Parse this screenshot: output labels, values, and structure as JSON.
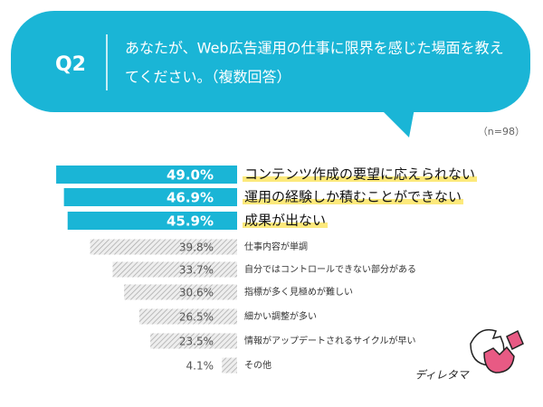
{
  "header": {
    "label": "Q2",
    "question": [
      "あなたが、Web広告運用の仕事に限界を感じた場面を教え",
      "てください。（複数回答）"
    ],
    "sample": "（n=98）"
  },
  "chart_data": {
    "type": "bar",
    "orientation": "horizontal",
    "color": "#1ab5d6",
    "categories": [
      "コンテンツ作成の要望に応えられない",
      "運用の経験しか積むことができない",
      "成果が出ない",
      "仕事内容が単調",
      "自分ではコントロールできない部分がある",
      "指標が多く見極めが難しい",
      "細かい調整が多い",
      "情報がアップデートされるサイクルが早い",
      "その他"
    ],
    "values": [
      49.0,
      46.9,
      45.9,
      39.8,
      33.7,
      30.6,
      26.5,
      23.5,
      4.1
    ],
    "value_labels": [
      "49.0%",
      "46.9%",
      "45.9%",
      "39.8%",
      "33.7%",
      "30.6%",
      "26.5%",
      "23.5%",
      "4.1%"
    ]
  },
  "logo": "ディレタマ"
}
